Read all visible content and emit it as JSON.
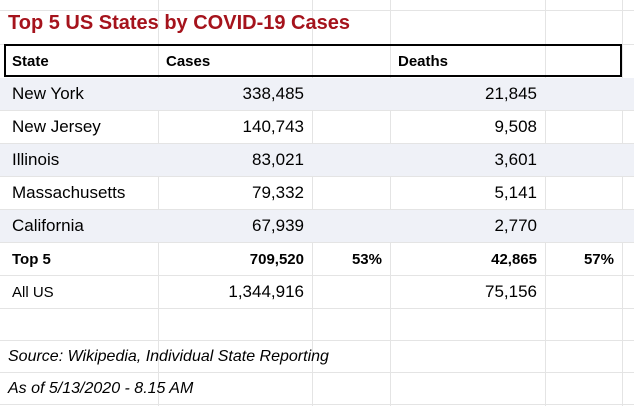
{
  "title": "Top 5 US States by COVID-19 Cases",
  "header": {
    "state": "State",
    "cases": "Cases",
    "deaths": "Deaths"
  },
  "rows": [
    {
      "state": "New York",
      "cases": "338,485",
      "deaths": "21,845"
    },
    {
      "state": "New Jersey",
      "cases": "140,743",
      "deaths": "9,508"
    },
    {
      "state": "Illinois",
      "cases": "83,021",
      "deaths": "3,601"
    },
    {
      "state": "Massachusetts",
      "cases": "79,332",
      "deaths": "5,141"
    },
    {
      "state": "California",
      "cases": "67,939",
      "deaths": "2,770"
    }
  ],
  "top5": {
    "label": "Top 5",
    "cases": "709,520",
    "cases_pct": "53%",
    "deaths": "42,865",
    "deaths_pct": "57%"
  },
  "all_us": {
    "label": "All US",
    "cases": "1,344,916",
    "deaths": "75,156"
  },
  "notes": {
    "source": "Source: Wikipedia, Individual State Reporting",
    "as_of": "As of 5/13/2020 - 8.15 AM"
  },
  "colors": {
    "title": "#a5131c",
    "shade": "#eff1f7",
    "grid": "#e4e4e4"
  }
}
